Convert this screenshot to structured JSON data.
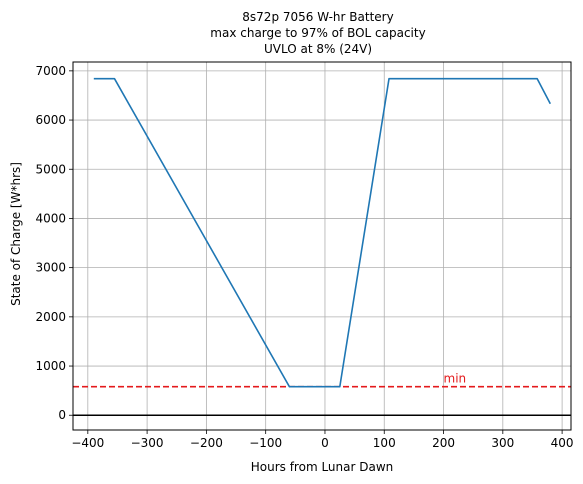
{
  "chart_data": {
    "type": "line",
    "title_lines": [
      "8s72p 7056 W-hr Battery",
      "max charge to 97% of BOL capacity",
      "UVLO at  8% (24V)"
    ],
    "xlabel": "Hours from Lunar Dawn",
    "ylabel": "State of Charge [W*hrs]",
    "xlim": [
      -425,
      415
    ],
    "ylim": [
      -300,
      7180
    ],
    "xticks": [
      -400,
      -300,
      -200,
      -100,
      0,
      100,
      200,
      300,
      400
    ],
    "yticks": [
      0,
      1000,
      2000,
      3000,
      4000,
      5000,
      6000,
      7000
    ],
    "grid": true,
    "series": [
      {
        "color": "#1f77b4",
        "x": [
          -390,
          -355,
          -60,
          25,
          108,
          358,
          380
        ],
        "y": [
          6840,
          6840,
          580,
          580,
          6840,
          6840,
          6330
        ]
      }
    ],
    "hlines": [
      {
        "y": 580,
        "style": "dashed",
        "color": "#e41a1c",
        "label": "min",
        "label_x": 200
      },
      {
        "y": 0,
        "style": "solid",
        "color": "#000000"
      }
    ]
  }
}
